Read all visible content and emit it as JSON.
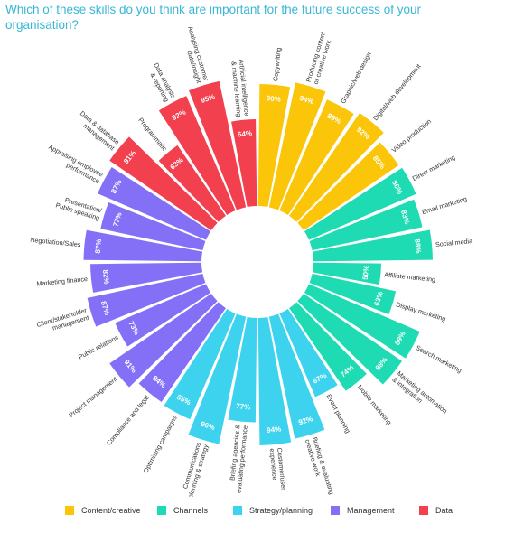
{
  "title": "Which of these skills do you think are important for the future success of your organisation?",
  "chart_data": {
    "type": "radial-bar",
    "title": "Which of these skills do you think are important for the future success of your organisation?",
    "value_range": [
      0,
      100
    ],
    "unit": "%",
    "categories_order": [
      "Content/creative",
      "Channels",
      "Strategy/planning",
      "Management",
      "Data"
    ],
    "colors": {
      "Content/creative": "#fbc50a",
      "Channels": "#1edbb3",
      "Strategy/planning": "#3dd3ef",
      "Management": "#8470f6",
      "Data": "#f2404f"
    },
    "items": [
      {
        "label": "Copywriting",
        "value": 90,
        "category": "Content/creative"
      },
      {
        "label": "Producing content\nor creative work",
        "value": 94,
        "category": "Content/creative"
      },
      {
        "label": "Graphic/web design",
        "value": 89,
        "category": "Content/creative"
      },
      {
        "label": "Digital/web development",
        "value": 92,
        "category": "Content/creative"
      },
      {
        "label": "Video production",
        "value": 85,
        "category": "Content/creative"
      },
      {
        "label": "Direct marketing",
        "value": 86,
        "category": "Channels"
      },
      {
        "label": "Email marketing",
        "value": 83,
        "category": "Channels"
      },
      {
        "label": "Social media",
        "value": 88,
        "category": "Channels"
      },
      {
        "label": "Affiliate marketing",
        "value": 50,
        "category": "Channels"
      },
      {
        "label": "Display marketing",
        "value": 63,
        "category": "Channels"
      },
      {
        "label": "Search marketing",
        "value": 89,
        "category": "Channels"
      },
      {
        "label": "Marketing automation\n& integration",
        "value": 88,
        "category": "Channels"
      },
      {
        "label": "Mobile marketing",
        "value": 74,
        "category": "Channels"
      },
      {
        "label": "Event planning",
        "value": 67,
        "category": "Strategy/planning"
      },
      {
        "label": "Briefing & evaluating\ncreative work",
        "value": 92,
        "category": "Strategy/planning"
      },
      {
        "label": "Customer/user\nexperience",
        "value": 94,
        "category": "Strategy/planning"
      },
      {
        "label": "Briefing agencies &\nevaluating performance",
        "value": 77,
        "category": "Strategy/planning"
      },
      {
        "label": "Communications\nplanning & strategy",
        "value": 96,
        "category": "Strategy/planning"
      },
      {
        "label": "Optimising campaigns",
        "value": 85,
        "category": "Strategy/planning"
      },
      {
        "label": "Compliance and legal",
        "value": 84,
        "category": "Management"
      },
      {
        "label": "Project management",
        "value": 91,
        "category": "Management"
      },
      {
        "label": "Public relations",
        "value": 73,
        "category": "Management"
      },
      {
        "label": "Client/stakeholder\nmanagement",
        "value": 87,
        "category": "Management"
      },
      {
        "label": "Marketing finance",
        "value": 82,
        "category": "Management"
      },
      {
        "label": "Negotiation/Sales",
        "value": 87,
        "category": "Management"
      },
      {
        "label": "Presentation/\nPublic speaking",
        "value": 77,
        "category": "Management"
      },
      {
        "label": "Appraising employee\nperformance",
        "value": 87,
        "category": "Management"
      },
      {
        "label": "Data & database\nmanagement",
        "value": 91,
        "category": "Data"
      },
      {
        "label": "Programmatic",
        "value": 63,
        "category": "Data"
      },
      {
        "label": "Data analysis\n& reporting",
        "value": 92,
        "category": "Data"
      },
      {
        "label": "Analysing customer\ndata/insight",
        "value": 95,
        "category": "Data"
      },
      {
        "label": "Artificial intelligence\n& machine learning",
        "value": 64,
        "category": "Data"
      }
    ],
    "legend": {
      "placement": "bottom",
      "entries": [
        "Content/creative",
        "Channels",
        "Strategy/planning",
        "Management",
        "Data"
      ]
    }
  }
}
